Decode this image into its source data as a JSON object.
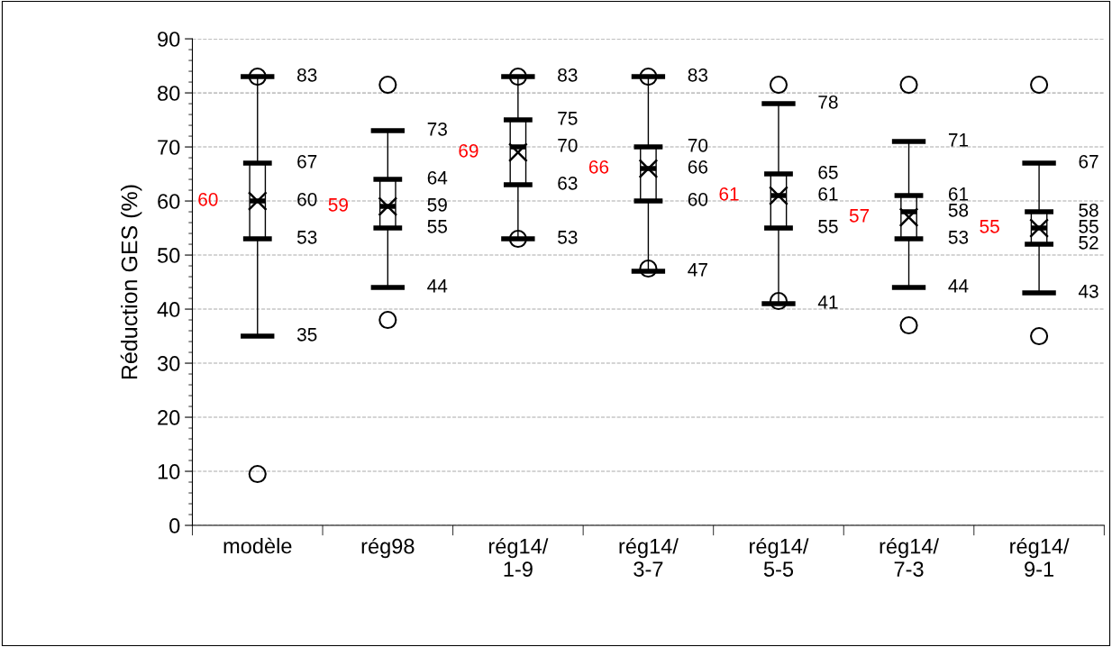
{
  "chart_data": {
    "type": "box",
    "ylabel": "Réduction GES (%)",
    "categories": [
      "modèle",
      "rég98",
      "rég14/\n1-9",
      "rég14/\n3-7",
      "rég14/\n5-5",
      "rég14/\n7-3",
      "rég14/\n9-1"
    ],
    "boxes": [
      {
        "low": 35,
        "q1": 53,
        "median": 60,
        "q3": 67,
        "high": 83,
        "mean": 60,
        "outliers": [
          83,
          9.5
        ]
      },
      {
        "low": 44,
        "q1": 55,
        "median": 59,
        "q3": 64,
        "high": 73,
        "mean": 59,
        "outliers": [
          81.5,
          38
        ]
      },
      {
        "low": 53,
        "q1": 63,
        "median": 70,
        "q3": 75,
        "high": 83,
        "mean": 69,
        "outliers": [
          83,
          53
        ]
      },
      {
        "low": 47,
        "q1": 60,
        "median": 66,
        "q3": 70,
        "high": 83,
        "mean": 66,
        "outliers": [
          83,
          47.5
        ]
      },
      {
        "low": 41,
        "q1": 55,
        "median": 61,
        "q3": 65,
        "high": 78,
        "mean": 61,
        "outliers": [
          81.5,
          41.5
        ]
      },
      {
        "low": 44,
        "q1": 53,
        "median": 58,
        "q3": 61,
        "high": 71,
        "mean": 57,
        "outliers": [
          81.5,
          37
        ]
      },
      {
        "low": 43,
        "q1": 52,
        "median": 55,
        "q3": 58,
        "high": 67,
        "mean": 55,
        "outliers": [
          81.5,
          35
        ]
      }
    ],
    "annotations": [
      {
        "text": "60",
        "x": "modèle",
        "y": 60
      },
      {
        "text": "83",
        "x": "modèle",
        "y": 83
      },
      {
        "text": "67",
        "x": "modèle",
        "y": 67
      },
      {
        "text": "60",
        "x": "modèle",
        "y": 60
      },
      {
        "text": "53",
        "x": "modèle",
        "y": 53
      },
      {
        "text": "35",
        "x": "modèle",
        "y": 35
      },
      {
        "text": "59",
        "x": "rég98",
        "y": 59
      },
      {
        "text": "73",
        "x": "rég98",
        "y": 73
      },
      {
        "text": "64",
        "x": "rég98",
        "y": 64
      },
      {
        "text": "59",
        "x": "rég98",
        "y": 59
      },
      {
        "text": "55",
        "x": "rég98",
        "y": 55
      },
      {
        "text": "44",
        "x": "rég98",
        "y": 44
      },
      {
        "text": "69",
        "x": "rég14/\n1-9",
        "y": 69
      },
      {
        "text": "83",
        "x": "rég14/\n1-9",
        "y": 83
      },
      {
        "text": "75",
        "x": "rég14/\n1-9",
        "y": 75
      },
      {
        "text": "70",
        "x": "rég14/\n1-9",
        "y": 70
      },
      {
        "text": "63",
        "x": "rég14/\n1-9",
        "y": 63
      },
      {
        "text": "53",
        "x": "rég14/\n1-9",
        "y": 53
      },
      {
        "text": "66",
        "x": "rég14/\n3-7",
        "y": 66
      },
      {
        "text": "83",
        "x": "rég14/\n3-7",
        "y": 83
      },
      {
        "text": "70",
        "x": "rég14/\n3-7",
        "y": 70
      },
      {
        "text": "66",
        "x": "rég14/\n3-7",
        "y": 66
      },
      {
        "text": "60",
        "x": "rég14/\n3-7",
        "y": 60
      },
      {
        "text": "47",
        "x": "rég14/\n3-7",
        "y": 47
      },
      {
        "text": "61",
        "x": "rég14/\n5-5",
        "y": 61
      },
      {
        "text": "78",
        "x": "rég14/\n5-5",
        "y": 78
      },
      {
        "text": "65",
        "x": "rég14/\n5-5",
        "y": 65
      },
      {
        "text": "61",
        "x": "rég14/\n5-5",
        "y": 61
      },
      {
        "text": "55",
        "x": "rég14/\n5-5",
        "y": 55
      },
      {
        "text": "41",
        "x": "rég14/\n5-5",
        "y": 41
      },
      {
        "text": "57",
        "x": "rég14/\n7-3",
        "y": 57
      },
      {
        "text": "71",
        "x": "rég14/\n7-3",
        "y": 71
      },
      {
        "text": "61",
        "x": "rég14/\n7-3",
        "y": 61
      },
      {
        "text": "58",
        "x": "rég14/\n7-3",
        "y": 58
      },
      {
        "text": "53",
        "x": "rég14/\n7-3",
        "y": 53
      },
      {
        "text": "44",
        "x": "rég14/\n7-3",
        "y": 44
      },
      {
        "text": "55",
        "x": "rég14/\n9-1",
        "y": 55
      },
      {
        "text": "67",
        "x": "rég14/\n9-1",
        "y": 67
      },
      {
        "text": "58",
        "x": "rég14/\n9-1",
        "y": 58
      },
      {
        "text": "55",
        "x": "rég14/\n9-1",
        "y": 55
      },
      {
        "text": "52",
        "x": "rég14/\n9-1",
        "y": 52
      },
      {
        "text": "43",
        "x": "rég14/\n9-1",
        "y": 43
      }
    ],
    "ylim": [
      0,
      90
    ],
    "yticks": [
      0,
      10,
      20,
      30,
      40,
      50,
      60,
      70,
      80,
      90
    ],
    "grid": "y"
  }
}
